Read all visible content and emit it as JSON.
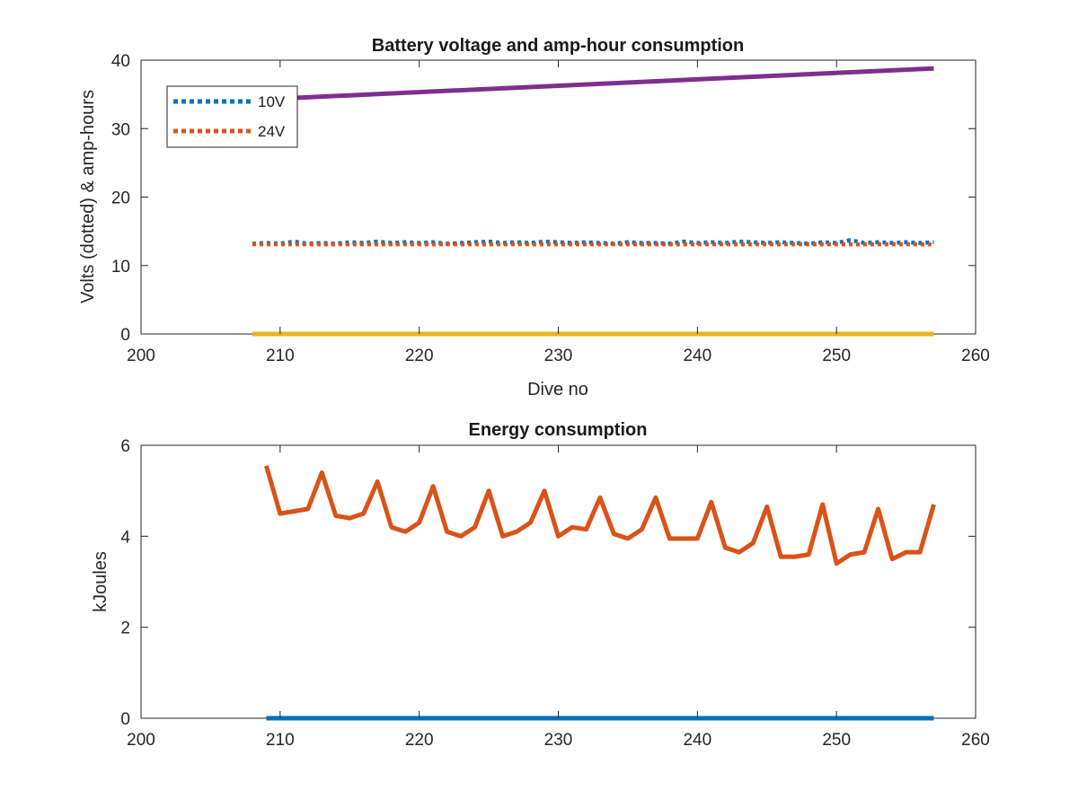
{
  "chart_data": [
    {
      "type": "line",
      "title": "Battery voltage and amp-hour consumption",
      "xlabel": "Dive no",
      "ylabel": "Volts (dotted) & amp-hours",
      "xlim": [
        200,
        260
      ],
      "ylim": [
        0,
        40
      ],
      "xticks": [
        "200",
        "210",
        "220",
        "230",
        "240",
        "250",
        "260"
      ],
      "yticks": [
        "0",
        "10",
        "20",
        "30",
        "40"
      ],
      "grid": false,
      "legend_position": "top-left",
      "legend": [
        "10V",
        "24V"
      ],
      "colors": {
        "10V": "#0072BD",
        "24V": "#D95319",
        "amp_hours_1": "#7E2F8E",
        "amp_hours_2": "#EDB120"
      },
      "series": [
        {
          "name": "10V",
          "style": "dotted",
          "color": "#0072BD",
          "x": [
            208,
            209,
            210,
            211,
            212,
            213,
            214,
            215,
            216,
            217,
            218,
            219,
            220,
            221,
            222,
            223,
            224,
            225,
            226,
            227,
            228,
            229,
            230,
            231,
            232,
            233,
            234,
            235,
            236,
            237,
            238,
            239,
            240,
            241,
            242,
            243,
            244,
            245,
            246,
            247,
            248,
            249,
            250,
            251,
            252,
            253,
            254,
            255,
            256,
            257
          ],
          "y": [
            13.2,
            13.3,
            13.2,
            13.5,
            13.2,
            13.3,
            13.2,
            13.4,
            13.3,
            13.5,
            13.3,
            13.4,
            13.3,
            13.4,
            13.2,
            13.3,
            13.4,
            13.5,
            13.3,
            13.4,
            13.3,
            13.5,
            13.4,
            13.3,
            13.4,
            13.3,
            13.2,
            13.4,
            13.3,
            13.3,
            13.2,
            13.5,
            13.3,
            13.4,
            13.3,
            13.5,
            13.4,
            13.3,
            13.4,
            13.3,
            13.2,
            13.4,
            13.3,
            13.7,
            13.3,
            13.4,
            13.3,
            13.4,
            13.3,
            13.4
          ]
        },
        {
          "name": "24V",
          "style": "dotted",
          "color": "#D95319",
          "x": [
            208,
            209,
            210,
            211,
            212,
            213,
            214,
            215,
            216,
            217,
            218,
            219,
            220,
            221,
            222,
            223,
            224,
            225,
            226,
            227,
            228,
            229,
            230,
            231,
            232,
            233,
            234,
            235,
            236,
            237,
            238,
            239,
            240,
            241,
            242,
            243,
            244,
            245,
            246,
            247,
            248,
            249,
            250,
            251,
            252,
            253,
            254,
            255,
            256,
            257
          ],
          "y": [
            13.1,
            13.1,
            13.1,
            13.1,
            13.1,
            13.1,
            13.1,
            13.1,
            13.1,
            13.1,
            13.1,
            13.1,
            13.1,
            13.1,
            13.1,
            13.1,
            13.1,
            13.1,
            13.1,
            13.1,
            13.1,
            13.1,
            13.1,
            13.1,
            13.1,
            13.1,
            13.1,
            13.1,
            13.1,
            13.1,
            13.1,
            13.1,
            13.1,
            13.1,
            13.1,
            13.1,
            13.1,
            13.1,
            13.1,
            13.1,
            13.1,
            13.1,
            13.1,
            13.1,
            13.1,
            13.1,
            13.1,
            13.1,
            13.1,
            13.1
          ]
        },
        {
          "style": "solid",
          "color": "#7E2F8E",
          "x": [
            208,
            257
          ],
          "y": [
            34.2,
            38.8
          ]
        },
        {
          "style": "solid",
          "color": "#EDB120",
          "x": [
            208,
            257
          ],
          "y": [
            0,
            0
          ]
        }
      ]
    },
    {
      "type": "line",
      "title": "Energy consumption",
      "xlabel": "",
      "ylabel": "kJoules",
      "xlim": [
        200,
        260
      ],
      "ylim": [
        0,
        6
      ],
      "xticks": [
        "200",
        "210",
        "220",
        "230",
        "240",
        "250",
        "260"
      ],
      "yticks": [
        "0",
        "2",
        "4",
        "6"
      ],
      "grid": false,
      "colors": {
        "energy": "#D95319",
        "baseline": "#0072BD"
      },
      "series": [
        {
          "style": "solid",
          "color": "#D95319",
          "x": [
            209,
            210,
            211,
            212,
            213,
            214,
            215,
            216,
            217,
            218,
            219,
            220,
            221,
            222,
            223,
            224,
            225,
            226,
            227,
            228,
            229,
            230,
            231,
            232,
            233,
            234,
            235,
            236,
            237,
            238,
            239,
            240,
            241,
            242,
            243,
            244,
            245,
            246,
            247,
            248,
            249,
            250,
            251,
            252,
            253,
            254,
            255,
            256,
            257
          ],
          "y": [
            5.55,
            4.5,
            4.55,
            4.6,
            5.4,
            4.45,
            4.4,
            4.5,
            5.2,
            4.2,
            4.1,
            4.3,
            5.1,
            4.1,
            4.0,
            4.2,
            5.0,
            4.0,
            4.1,
            4.3,
            5.0,
            4.0,
            4.2,
            4.15,
            4.85,
            4.05,
            3.95,
            4.15,
            4.85,
            3.95,
            3.95,
            3.95,
            4.75,
            3.75,
            3.65,
            3.85,
            4.65,
            3.55,
            3.55,
            3.6,
            4.7,
            3.4,
            3.6,
            3.65,
            4.6,
            3.5,
            3.65,
            3.65,
            4.7
          ]
        },
        {
          "style": "solid",
          "color": "#0072BD",
          "x": [
            209,
            257
          ],
          "y": [
            0,
            0
          ]
        }
      ]
    }
  ]
}
